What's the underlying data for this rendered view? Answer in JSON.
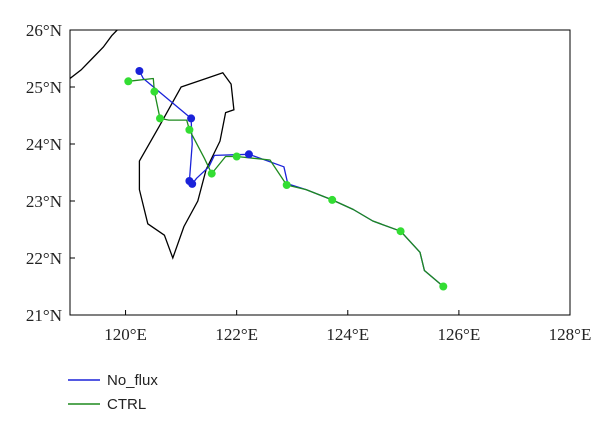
{
  "chart_data": {
    "type": "map-track",
    "title": "",
    "xlabel": "",
    "ylabel": "",
    "xlim": [
      119,
      128
    ],
    "ylim": [
      21,
      26
    ],
    "x_ticks": [
      {
        "value": 120,
        "label": "120°E"
      },
      {
        "value": 122,
        "label": "122°E"
      },
      {
        "value": 124,
        "label": "124°E"
      },
      {
        "value": 126,
        "label": "126°E"
      },
      {
        "value": 128,
        "label": "128°E"
      }
    ],
    "y_ticks": [
      {
        "value": 21,
        "label": "21°N"
      },
      {
        "value": 22,
        "label": "22°N"
      },
      {
        "value": 23,
        "label": "23°N"
      },
      {
        "value": 24,
        "label": "24°N"
      },
      {
        "value": 25,
        "label": "25°N"
      },
      {
        "value": 26,
        "label": "26°N"
      }
    ],
    "grid": false,
    "legend_position": "below-left",
    "coastlines": [
      {
        "name": "Taiwan",
        "closed": true,
        "color": "#000000",
        "lon": [
          121.0,
          121.45,
          121.75,
          121.9,
          121.95,
          121.8,
          121.7,
          121.45,
          121.3,
          121.05,
          120.85,
          120.7,
          120.4,
          120.25,
          120.25,
          120.6,
          121.0
        ],
        "lat": [
          25.0,
          25.15,
          25.25,
          25.05,
          24.6,
          24.55,
          24.05,
          23.55,
          23.0,
          22.55,
          22.0,
          22.4,
          22.6,
          23.2,
          23.7,
          24.3,
          25.0
        ]
      },
      {
        "name": "Mainland China coast",
        "closed": false,
        "color": "#000000",
        "lon": [
          119.0,
          119.2,
          119.4,
          119.6,
          119.75,
          119.85
        ],
        "lat": [
          25.15,
          25.3,
          25.5,
          25.7,
          25.9,
          26.0
        ]
      }
    ],
    "series": [
      {
        "name": "No_flux",
        "color": "#1a22d9",
        "marker_color": "#1a22d9",
        "lon": [
          120.25,
          120.32,
          121.18,
          121.2,
          121.15,
          121.2,
          121.28,
          121.5,
          121.6,
          122.22,
          122.85,
          122.92,
          123.25,
          123.72,
          124.1,
          124.45,
          124.95,
          125.3,
          125.38,
          125.72
        ],
        "lat": [
          25.28,
          25.15,
          24.45,
          24.0,
          23.35,
          23.3,
          23.4,
          23.6,
          23.8,
          23.82,
          23.6,
          23.3,
          23.2,
          23.02,
          22.85,
          22.65,
          22.47,
          22.1,
          21.78,
          21.5
        ],
        "markers": [
          true,
          false,
          true,
          false,
          true,
          true,
          false,
          false,
          false,
          true,
          false,
          false,
          false,
          false,
          false,
          false,
          false,
          false,
          false,
          false
        ]
      },
      {
        "name": "CTRL",
        "color": "#1e8a1e",
        "marker_color": "#33dd33",
        "lon": [
          120.05,
          120.5,
          120.52,
          120.62,
          120.78,
          121.1,
          121.15,
          121.42,
          121.55,
          121.8,
          122.0,
          122.6,
          122.9,
          123.25,
          123.72,
          124.1,
          124.45,
          124.95,
          125.3,
          125.38,
          125.72
        ],
        "lat": [
          25.1,
          25.15,
          24.92,
          24.45,
          24.42,
          24.42,
          24.25,
          23.75,
          23.48,
          23.78,
          23.78,
          23.72,
          23.28,
          23.2,
          23.02,
          22.85,
          22.65,
          22.47,
          22.1,
          21.78,
          21.5
        ],
        "markers": [
          true,
          false,
          true,
          true,
          false,
          false,
          true,
          false,
          true,
          false,
          true,
          false,
          true,
          false,
          true,
          false,
          false,
          true,
          false,
          false,
          true
        ]
      }
    ]
  },
  "legend": {
    "items": [
      {
        "label": "No_flux",
        "color": "#1a22d9"
      },
      {
        "label": "CTRL",
        "color": "#1e8a1e"
      }
    ]
  }
}
